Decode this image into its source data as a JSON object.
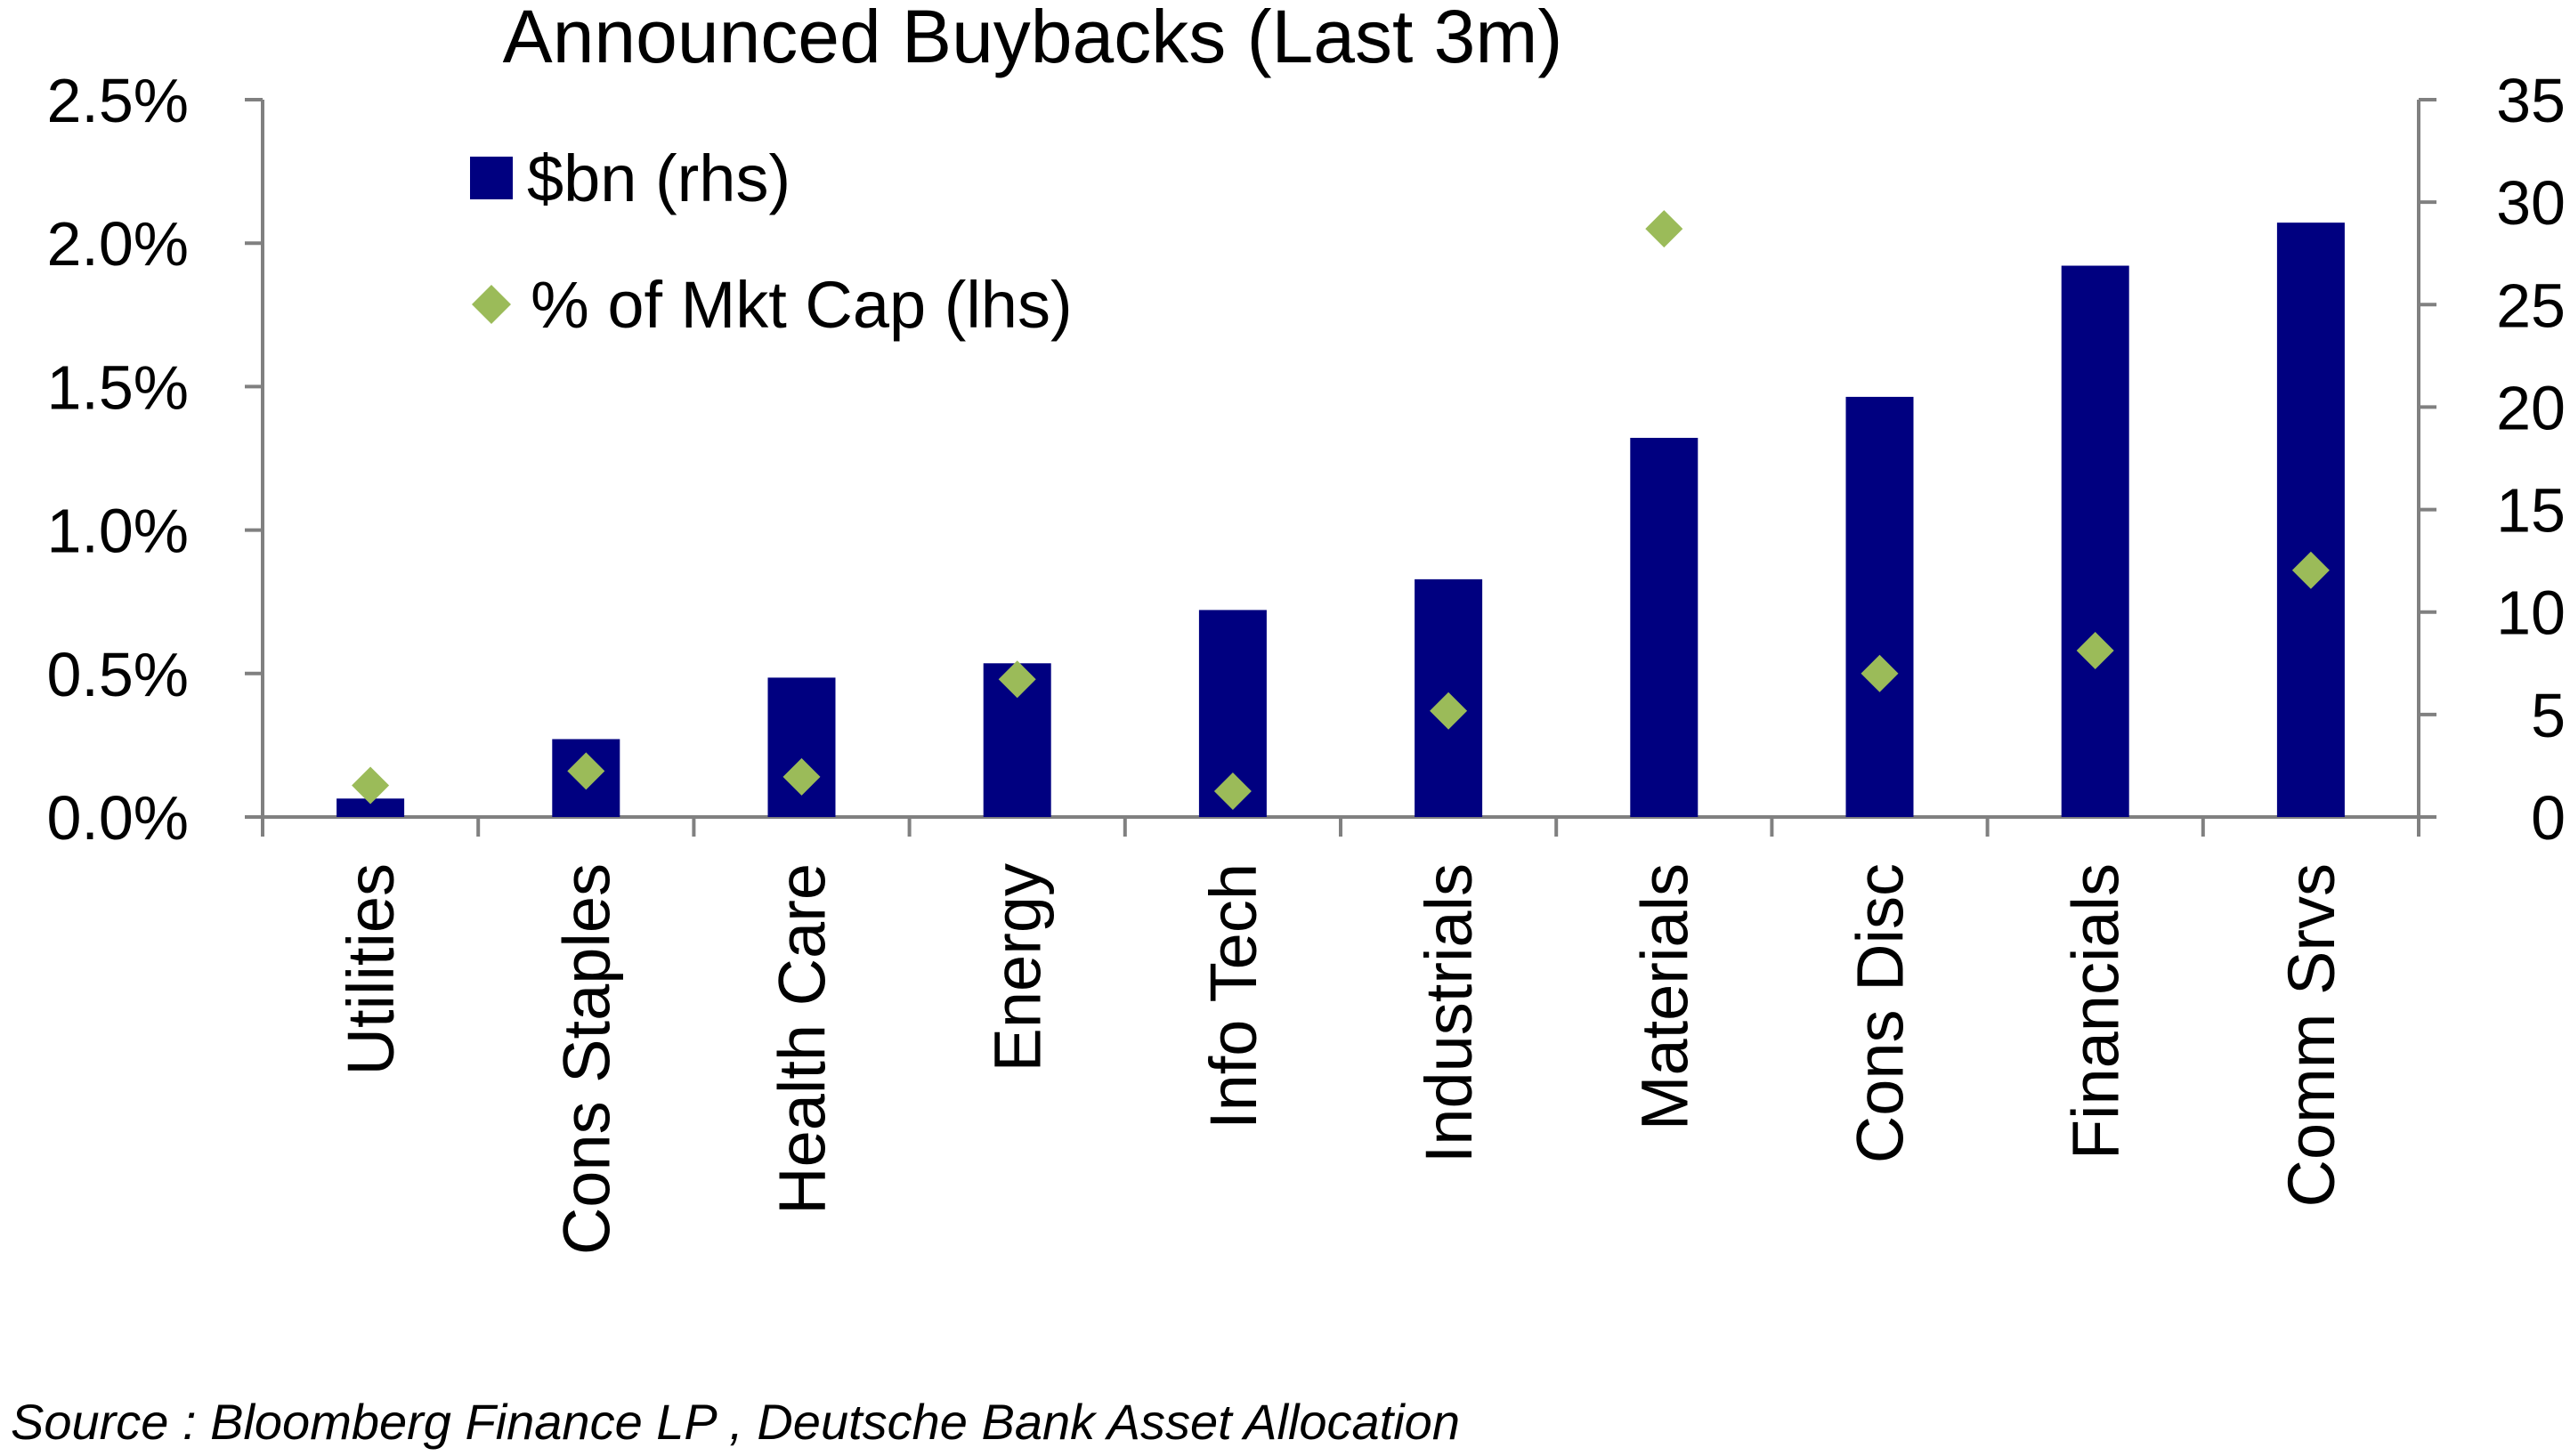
{
  "chart_data": {
    "type": "bar",
    "title": "Announced Buybacks (Last 3m)",
    "categories": [
      "Utilities",
      "Cons Staples",
      "Health Care",
      "Energy",
      "Info Tech",
      "Industrials",
      "Materials",
      "Cons Disc",
      "Financials",
      "Comm Srvs"
    ],
    "series": [
      {
        "name": "$bn (rhs)",
        "type": "bar",
        "axis": "right",
        "color": "#000080",
        "values": [
          0.9,
          3.8,
          6.8,
          7.5,
          10.1,
          11.6,
          18.5,
          20.5,
          26.9,
          29.0
        ]
      },
      {
        "name": "% of Mkt Cap (lhs)",
        "type": "scatter",
        "marker": "diamond",
        "axis": "left",
        "color": "#9BBB59",
        "values": [
          0.11,
          0.16,
          0.14,
          0.48,
          0.09,
          0.37,
          2.05,
          0.5,
          0.58,
          0.86
        ]
      }
    ],
    "left_axis": {
      "min": 0,
      "max": 2.5,
      "ticks": [
        0.0,
        0.5,
        1.0,
        1.5,
        2.0,
        2.5
      ],
      "tick_labels": [
        "0.0%",
        "0.5%",
        "1.0%",
        "1.5%",
        "2.0%",
        "2.5%"
      ]
    },
    "right_axis": {
      "min": 0,
      "max": 35,
      "ticks": [
        0,
        5,
        10,
        15,
        20,
        25,
        30,
        35
      ],
      "tick_labels": [
        "0",
        "5",
        "10",
        "15",
        "20",
        "25",
        "30",
        "35"
      ]
    },
    "legend_position": "top-left",
    "grid": false,
    "source": "Source : Bloomberg Finance LP , Deutsche Bank Asset Allocation"
  }
}
